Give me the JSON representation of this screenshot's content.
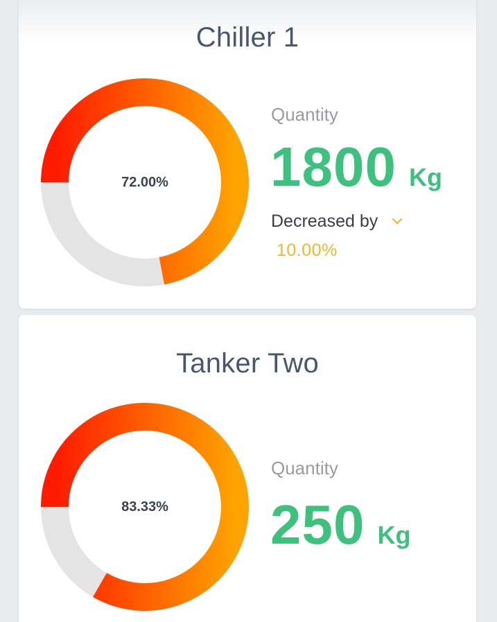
{
  "colors": {
    "title": "#4a5670",
    "quantity_value": "#3ec17f",
    "quantity_label": "#9a9aa0",
    "change_value": "#f2b632",
    "ring_track": "#e4e4e4",
    "gradient_start": "#ff1a00",
    "gradient_end": "#ffa300"
  },
  "cards": [
    {
      "title": "Chiller 1",
      "percent_text": "72.00%",
      "percent_value": 72.0,
      "quantity_label": "Quantity",
      "quantity_value": "1800",
      "quantity_unit": "Kg",
      "change_label": "Decreased by",
      "change_icon": "chevron-down-icon",
      "change_value": "10.00%"
    },
    {
      "title": "Tanker Two",
      "percent_text": "83.33%",
      "percent_value": 83.33,
      "quantity_label": "Quantity",
      "quantity_value": "250",
      "quantity_unit": "Kg"
    }
  ]
}
